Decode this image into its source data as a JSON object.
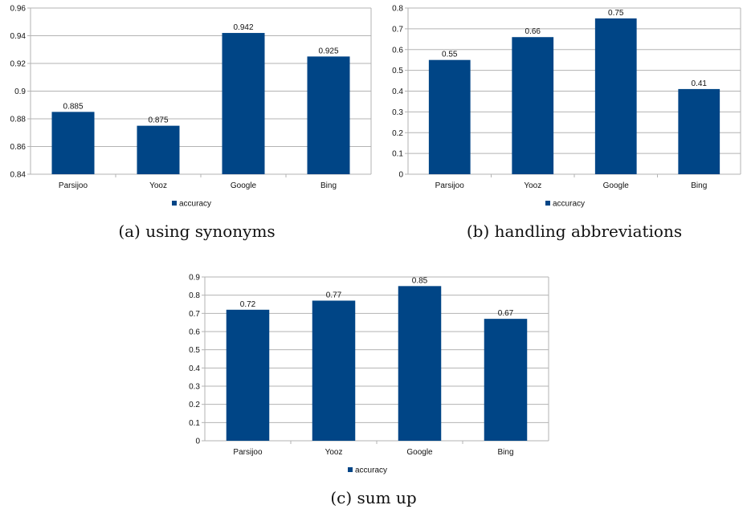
{
  "colors": {
    "bar": "#004586",
    "grid": "#b3b3b3",
    "axis": "#b3b3b3"
  },
  "chart_data": [
    {
      "type": "bar",
      "caption": "(a) using synonyms",
      "categories": [
        "Parsijoo",
        "Yooz",
        "Google",
        "Bing"
      ],
      "series": [
        {
          "name": "accuracy",
          "values": [
            0.885,
            0.875,
            0.942,
            0.925
          ]
        }
      ],
      "data_labels": [
        "0.885",
        "0.875",
        "0.942",
        "0.925"
      ],
      "ylim": [
        0.84,
        0.96
      ],
      "yticks": [
        0.84,
        0.86,
        0.88,
        0.9,
        0.92,
        0.94,
        0.96
      ],
      "ytick_labels": [
        "0.84",
        "0.86",
        "0.88",
        "0.9",
        "0.92",
        "0.94",
        "0.96"
      ],
      "grid": true,
      "legend": "bottom"
    },
    {
      "type": "bar",
      "caption": "(b) handling abbreviations",
      "categories": [
        "Parsijoo",
        "Yooz",
        "Google",
        "Bing"
      ],
      "series": [
        {
          "name": "accuracy",
          "values": [
            0.55,
            0.66,
            0.75,
            0.41
          ]
        }
      ],
      "data_labels": [
        "0.55",
        "0.66",
        "0.75",
        "0.41"
      ],
      "ylim": [
        0,
        0.8
      ],
      "yticks": [
        0,
        0.1,
        0.2,
        0.3,
        0.4,
        0.5,
        0.6,
        0.7,
        0.8
      ],
      "ytick_labels": [
        "0",
        "0.1",
        "0.2",
        "0.3",
        "0.4",
        "0.5",
        "0.6",
        "0.7",
        "0.8"
      ],
      "grid": true,
      "legend": "bottom"
    },
    {
      "type": "bar",
      "caption": "(c) sum up",
      "categories": [
        "Parsijoo",
        "Yooz",
        "Google",
        "Bing"
      ],
      "series": [
        {
          "name": "accuracy",
          "values": [
            0.72,
            0.77,
            0.85,
            0.67
          ]
        }
      ],
      "data_labels": [
        "0.72",
        "0.77",
        "0.85",
        "0.67"
      ],
      "ylim": [
        0,
        0.9
      ],
      "yticks": [
        0,
        0.1,
        0.2,
        0.3,
        0.4,
        0.5,
        0.6,
        0.7,
        0.8,
        0.9
      ],
      "ytick_labels": [
        "0",
        "0.1",
        "0.2",
        "0.3",
        "0.4",
        "0.5",
        "0.6",
        "0.7",
        "0.8",
        "0.9"
      ],
      "grid": true,
      "legend": "bottom"
    }
  ]
}
